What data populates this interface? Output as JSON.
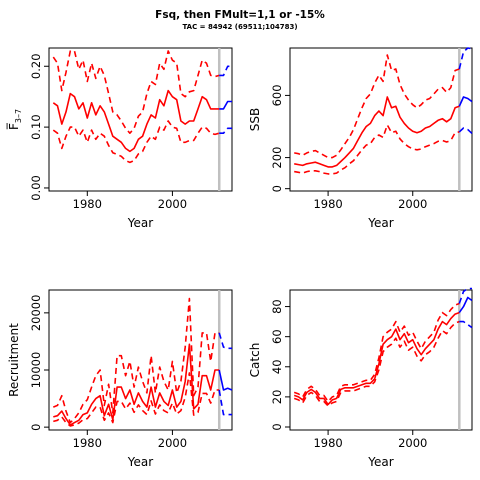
{
  "header": {
    "title": "Fsq, then FMult=1,1 or -15%",
    "subtitle": "TAC = 84942 (69511;104783)"
  },
  "colors": {
    "history": "#ff0000",
    "projection": "#0000ff",
    "marker": "#c0c0c0",
    "axes": "#000000"
  },
  "chart_data": [
    {
      "type": "line",
      "name": "fbar",
      "xlabel": "Year",
      "ylabel": "F̅ 3–7",
      "ylabel_main": "F̅",
      "ylabel_sub": "3–7",
      "xlim": [
        1971,
        2014
      ],
      "ylim": [
        -0.005,
        0.23
      ],
      "x_ticks": [
        1980,
        2000
      ],
      "y_ticks": [
        0.0,
        0.1,
        0.2
      ],
      "y_tick_labels": [
        "0.00",
        "0.10",
        "0.20"
      ],
      "marker_year": 2011,
      "history": {
        "x": [
          1972,
          1973,
          1974,
          1975,
          1976,
          1977,
          1978,
          1979,
          1980,
          1981,
          1982,
          1983,
          1984,
          1985,
          1986,
          1987,
          1988,
          1989,
          1990,
          1991,
          1992,
          1993,
          1994,
          1995,
          1996,
          1997,
          1998,
          1999,
          2000,
          2001,
          2002,
          2003,
          2004,
          2005,
          2006,
          2007,
          2008,
          2009,
          2010,
          2011
        ],
        "mid": [
          0.14,
          0.135,
          0.105,
          0.125,
          0.155,
          0.15,
          0.13,
          0.14,
          0.115,
          0.14,
          0.12,
          0.135,
          0.125,
          0.105,
          0.085,
          0.08,
          0.075,
          0.065,
          0.06,
          0.065,
          0.08,
          0.085,
          0.105,
          0.12,
          0.115,
          0.145,
          0.135,
          0.16,
          0.15,
          0.145,
          0.11,
          0.105,
          0.11,
          0.11,
          0.13,
          0.15,
          0.145,
          0.13,
          0.13,
          0.13
        ],
        "low": [
          0.095,
          0.09,
          0.065,
          0.085,
          0.1,
          0.1,
          0.085,
          0.095,
          0.075,
          0.095,
          0.08,
          0.09,
          0.085,
          0.07,
          0.058,
          0.055,
          0.052,
          0.045,
          0.042,
          0.045,
          0.056,
          0.06,
          0.075,
          0.085,
          0.08,
          0.1,
          0.095,
          0.11,
          0.1,
          0.098,
          0.075,
          0.075,
          0.078,
          0.078,
          0.09,
          0.1,
          0.098,
          0.09,
          0.088,
          0.09
        ],
        "high": [
          0.215,
          0.205,
          0.16,
          0.19,
          0.225,
          0.225,
          0.195,
          0.21,
          0.175,
          0.205,
          0.18,
          0.2,
          0.185,
          0.155,
          0.125,
          0.12,
          0.11,
          0.098,
          0.09,
          0.098,
          0.118,
          0.125,
          0.155,
          0.175,
          0.17,
          0.205,
          0.195,
          0.225,
          0.21,
          0.205,
          0.155,
          0.15,
          0.158,
          0.16,
          0.185,
          0.21,
          0.205,
          0.185,
          0.183,
          0.185
        ]
      },
      "projection": {
        "x": [
          2011,
          2012,
          2013,
          2014
        ],
        "mid": [
          0.13,
          0.13,
          0.142,
          0.142
        ],
        "low": [
          0.09,
          0.09,
          0.098,
          0.098
        ],
        "high": [
          0.185,
          0.185,
          0.2,
          0.2
        ]
      }
    },
    {
      "type": "line",
      "name": "ssb",
      "xlabel": "Year",
      "ylabel": "SSB",
      "xlim": [
        1971,
        2014
      ],
      "ylim": [
        -15,
        905
      ],
      "x_ticks": [
        1980,
        2000
      ],
      "y_ticks": [
        0,
        200,
        600
      ],
      "y_tick_labels": [
        "0",
        "200",
        "600"
      ],
      "marker_year": 2011,
      "history": {
        "x": [
          1972,
          1973,
          1974,
          1975,
          1976,
          1977,
          1978,
          1979,
          1980,
          1981,
          1982,
          1983,
          1984,
          1985,
          1986,
          1987,
          1988,
          1989,
          1990,
          1991,
          1992,
          1993,
          1994,
          1995,
          1996,
          1997,
          1998,
          1999,
          2000,
          2001,
          2002,
          2003,
          2004,
          2005,
          2006,
          2007,
          2008,
          2009,
          2010,
          2011
        ],
        "mid": [
          160,
          155,
          150,
          160,
          165,
          170,
          160,
          150,
          140,
          140,
          150,
          175,
          200,
          230,
          260,
          310,
          360,
          400,
          420,
          470,
          500,
          470,
          590,
          520,
          530,
          460,
          420,
          390,
          370,
          360,
          370,
          390,
          400,
          420,
          440,
          450,
          430,
          450,
          520,
          530
        ],
        "low": [
          110,
          105,
          100,
          110,
          115,
          115,
          110,
          100,
          95,
          95,
          100,
          120,
          135,
          160,
          180,
          215,
          250,
          280,
          290,
          330,
          345,
          330,
          410,
          360,
          370,
          320,
          290,
          270,
          255,
          250,
          255,
          270,
          280,
          290,
          305,
          310,
          300,
          310,
          360,
          365
        ],
        "high": [
          230,
          225,
          215,
          230,
          240,
          245,
          230,
          215,
          200,
          200,
          215,
          250,
          290,
          330,
          380,
          450,
          520,
          580,
          610,
          680,
          730,
          690,
          860,
          760,
          770,
          670,
          610,
          570,
          540,
          520,
          540,
          570,
          580,
          610,
          640,
          650,
          620,
          650,
          760,
          770
        ]
      },
      "projection": {
        "x": [
          2011,
          2012,
          2013,
          2014
        ],
        "mid": [
          530,
          590,
          580,
          560
        ],
        "low": [
          365,
          390,
          380,
          355
        ],
        "high": [
          770,
          880,
          905,
          900
        ]
      }
    },
    {
      "type": "line",
      "name": "recruitment",
      "xlabel": "Year",
      "ylabel": "Recruitment",
      "xlim": [
        1971,
        2014
      ],
      "ylim": [
        -500,
        24000
      ],
      "x_ticks": [
        1980,
        2000
      ],
      "y_ticks": [
        0,
        10000,
        20000
      ],
      "y_tick_labels": [
        "0",
        "10000",
        "20000"
      ],
      "marker_year": 2011,
      "history": {
        "x": [
          1972,
          1973,
          1974,
          1975,
          1976,
          1977,
          1978,
          1979,
          1980,
          1981,
          1982,
          1983,
          1984,
          1985,
          1986,
          1987,
          1988,
          1989,
          1990,
          1991,
          1992,
          1993,
          1994,
          1995,
          1996,
          1997,
          1998,
          1999,
          2000,
          2001,
          2002,
          2003,
          2004,
          2005,
          2006,
          2007,
          2008,
          2009,
          2010,
          2011
        ],
        "mid": [
          1800,
          2000,
          2800,
          1500,
          400,
          800,
          1200,
          2200,
          2500,
          4000,
          5000,
          5500,
          2000,
          4000,
          1300,
          7000,
          7000,
          5000,
          6500,
          4000,
          6000,
          4500,
          3500,
          7000,
          3500,
          6000,
          4500,
          3800,
          6500,
          3500,
          4500,
          8000,
          14500,
          3200,
          4000,
          9000,
          9000,
          6500,
          10000,
          10000
        ],
        "low": [
          1000,
          1200,
          1800,
          800,
          200,
          400,
          700,
          1300,
          1500,
          2500,
          3500,
          3500,
          1200,
          2500,
          800,
          4500,
          4500,
          3200,
          4200,
          2600,
          3900,
          2900,
          2200,
          4600,
          2300,
          3900,
          2900,
          2500,
          4200,
          2300,
          2900,
          5200,
          9500,
          2100,
          2600,
          5900,
          5900,
          4200,
          6500,
          6500
        ],
        "high": [
          3500,
          3800,
          5500,
          2800,
          800,
          1500,
          2500,
          4000,
          4800,
          7000,
          9000,
          10000,
          3800,
          7500,
          2500,
          12500,
          12500,
          9000,
          11500,
          7000,
          10500,
          8000,
          6000,
          12500,
          6000,
          10500,
          8000,
          6500,
          11500,
          6000,
          8000,
          14000,
          22500,
          5500,
          7000,
          16500,
          16500,
          11500,
          16500,
          16500
        ]
      },
      "projection": {
        "x": [
          2011,
          2012,
          2013,
          2014
        ],
        "mid": [
          10000,
          6500,
          6800,
          6500
        ],
        "low": [
          6500,
          2200,
          2200,
          2200
        ],
        "high": [
          16500,
          14000,
          13800,
          13800
        ]
      }
    },
    {
      "type": "line",
      "name": "catch",
      "xlabel": "Year",
      "ylabel": "Catch",
      "xlim": [
        1971,
        2014
      ],
      "ylim": [
        -2,
        91
      ],
      "x_ticks": [
        1980,
        2000
      ],
      "y_ticks": [
        0,
        20,
        40,
        60,
        80
      ],
      "y_tick_labels": [
        "0",
        "20",
        "40",
        "60",
        "80"
      ],
      "marker_year": 2011,
      "history": {
        "x": [
          1972,
          1973,
          1974,
          1975,
          1976,
          1977,
          1978,
          1979,
          1980,
          1981,
          1982,
          1983,
          1984,
          1985,
          1986,
          1987,
          1988,
          1989,
          1990,
          1991,
          1992,
          1993,
          1994,
          1995,
          1996,
          1997,
          1998,
          1999,
          2000,
          2001,
          2002,
          2003,
          2004,
          2005,
          2006,
          2007,
          2008,
          2009,
          2010,
          2011
        ],
        "mid": [
          21,
          20,
          18,
          23,
          25,
          23,
          19,
          19,
          15,
          18,
          19,
          25,
          26,
          26,
          26,
          27,
          28,
          29,
          29,
          32,
          42,
          55,
          58,
          60,
          65,
          58,
          62,
          56,
          58,
          52,
          48,
          52,
          55,
          58,
          65,
          70,
          68,
          72,
          75,
          76
        ],
        "low": [
          19,
          18,
          16,
          21,
          23,
          21,
          17,
          17,
          14,
          16,
          17,
          23,
          24,
          24,
          24,
          25,
          26,
          27,
          27,
          30,
          38,
          50,
          53,
          55,
          59,
          53,
          57,
          51,
          53,
          47,
          44,
          48,
          50,
          53,
          59,
          64,
          62,
          66,
          69,
          70
        ],
        "high": [
          23,
          22,
          20,
          25,
          27,
          25,
          21,
          21,
          17,
          20,
          21,
          27,
          28,
          28,
          28,
          29,
          30,
          31,
          31,
          35,
          46,
          60,
          63,
          65,
          70,
          63,
          67,
          61,
          63,
          57,
          52,
          57,
          60,
          63,
          71,
          76,
          74,
          78,
          81,
          82
        ]
      },
      "projection": {
        "x": [
          2011,
          2012,
          2013,
          2014
        ],
        "mid": [
          76,
          80,
          86,
          84
        ],
        "low": [
          70,
          70,
          68,
          66
        ],
        "high": [
          82,
          90,
          92,
          92
        ]
      }
    }
  ]
}
